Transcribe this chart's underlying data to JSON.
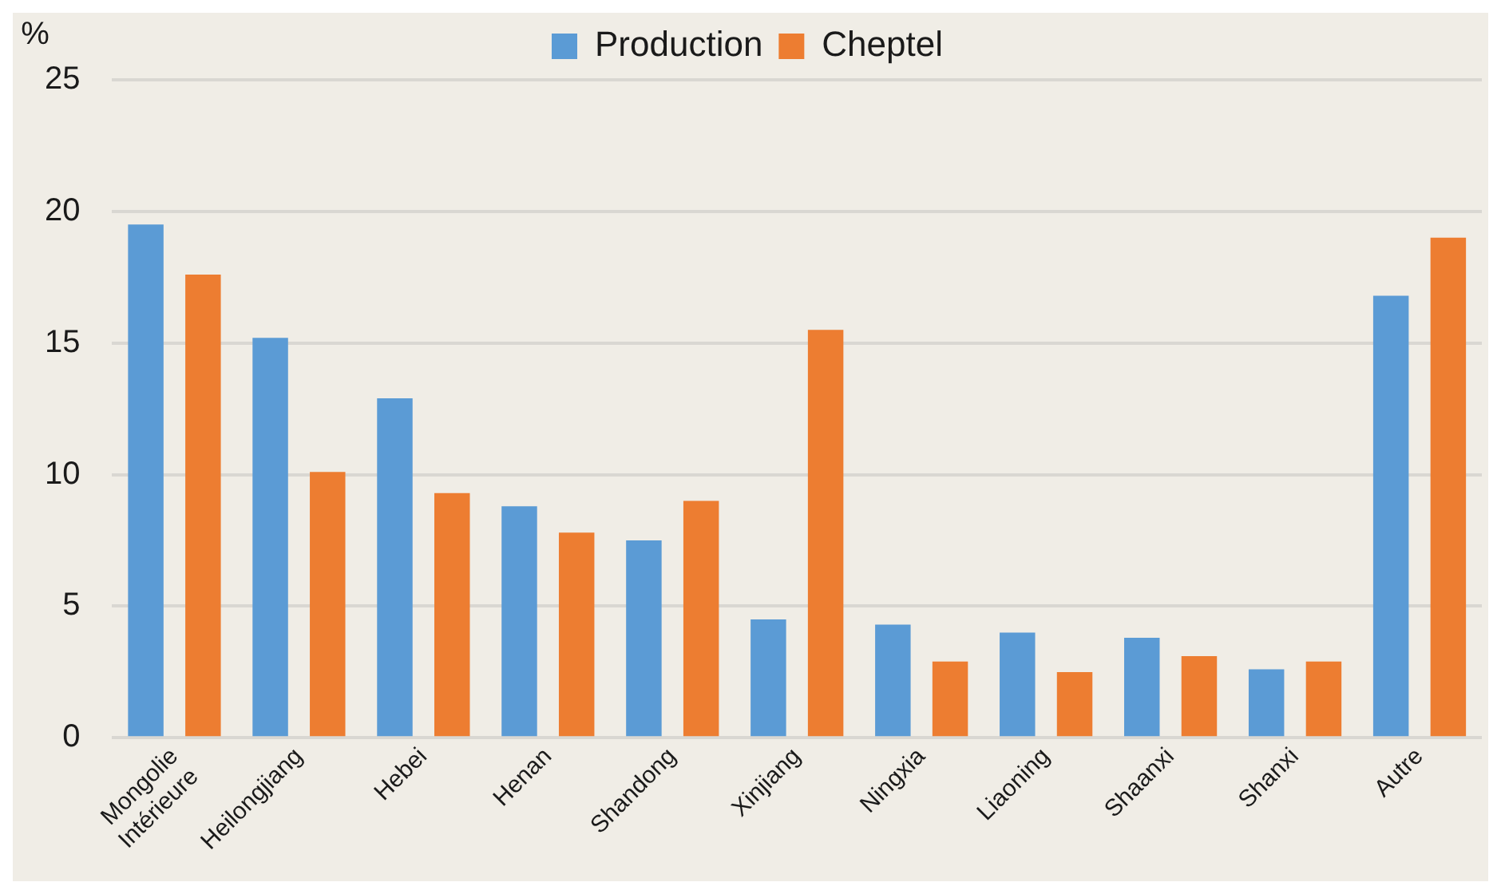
{
  "chart_data": {
    "type": "bar",
    "ylabel": "%",
    "categories": [
      "Mongolie\nIntérieure",
      "Heilongjiang",
      "Hebei",
      "Henan",
      "Shandong",
      "Xinjiang",
      "Ningxia",
      "Liaoning",
      "Shaanxi",
      "Shanxi",
      "Autre"
    ],
    "series": [
      {
        "name": "Production",
        "color": "#5b9bd5",
        "values": [
          19.5,
          15.2,
          12.9,
          8.8,
          7.5,
          4.5,
          4.3,
          4.0,
          3.8,
          2.6,
          16.8
        ]
      },
      {
        "name": "Cheptel",
        "color": "#ed7d31",
        "values": [
          17.6,
          10.1,
          9.3,
          7.8,
          9.0,
          15.5,
          2.9,
          2.5,
          3.1,
          2.9,
          19.0
        ]
      }
    ],
    "ylim": [
      0,
      25
    ],
    "yticks": [
      0,
      5,
      10,
      15,
      20,
      25
    ],
    "grid": "y",
    "legend": "top"
  }
}
